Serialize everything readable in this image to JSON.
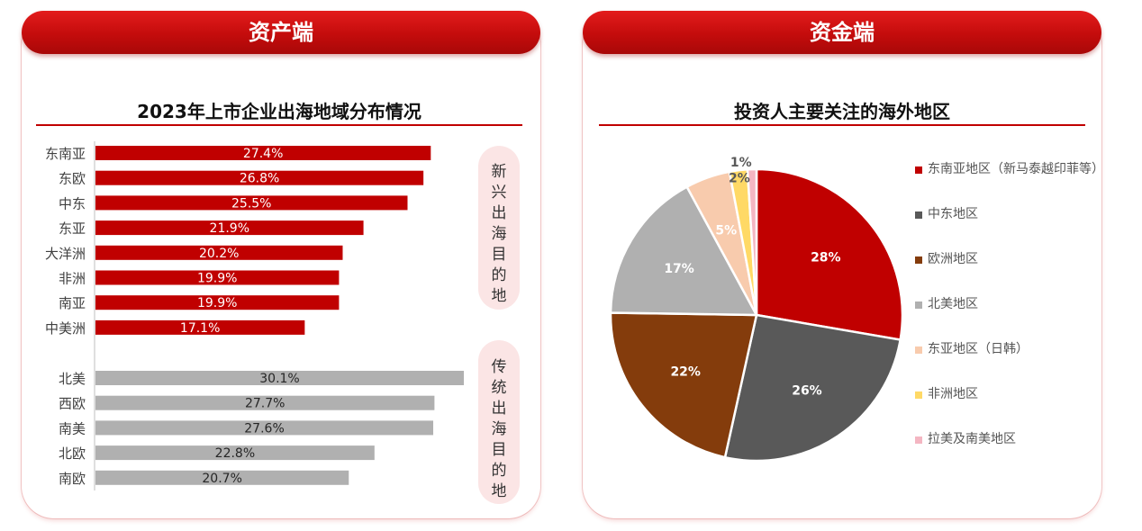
{
  "left_panel": {
    "banner": "资产端",
    "title": "2023年上市企业出海地域分布情况",
    "emerging_label": "新兴出海目的地",
    "traditional_label": "传统出海目的地"
  },
  "right_panel": {
    "banner": "资金端",
    "title": "投资人主要关注的海外地区"
  },
  "colors": {
    "accent_red": "#c00000",
    "bar_emerging": "#c00000",
    "bar_traditional": "#b0b0b0"
  },
  "chart_data": [
    {
      "type": "bar",
      "orientation": "horizontal",
      "title": "2023年上市企业出海地域分布情况",
      "xlim": [
        0,
        32
      ],
      "series": [
        {
          "group": "新兴出海目的地",
          "color": "#c00000",
          "categories": [
            "东南亚",
            "东欧",
            "中东",
            "东亚",
            "大洋洲",
            "非洲",
            "南亚",
            "中美洲"
          ],
          "values": [
            27.4,
            26.8,
            25.5,
            21.9,
            20.2,
            19.9,
            19.9,
            17.1
          ],
          "labels": [
            "27.4%",
            "26.8%",
            "25.5%",
            "21.9%",
            "20.2%",
            "19.9%",
            "19.9%",
            "17.1%"
          ]
        },
        {
          "group": "传统出海目的地",
          "color": "#b0b0b0",
          "categories": [
            "北美",
            "西欧",
            "南美",
            "北欧",
            "南欧"
          ],
          "values": [
            30.1,
            27.7,
            27.6,
            22.8,
            20.7
          ],
          "labels": [
            "30.1%",
            "27.7%",
            "27.6%",
            "22.8%",
            "20.7%"
          ]
        }
      ]
    },
    {
      "type": "pie",
      "title": "投资人主要关注的海外地区",
      "legend_position": "right",
      "slices": [
        {
          "label": "东南亚地区（新马泰越印菲等）",
          "value": 28,
          "text": "28%",
          "color": "#c00000"
        },
        {
          "label": "中东地区",
          "value": 26,
          "text": "26%",
          "color": "#595959"
        },
        {
          "label": "欧洲地区",
          "value": 22,
          "text": "22%",
          "color": "#843c0c"
        },
        {
          "label": "北美地区",
          "value": 17,
          "text": "17%",
          "color": "#b0b0b0"
        },
        {
          "label": "东亚地区（日韩）",
          "value": 5,
          "text": "5%",
          "color": "#f8cbad"
        },
        {
          "label": "非洲地区",
          "value": 2,
          "text": "2%",
          "color": "#ffd966"
        },
        {
          "label": "拉美及南美地区",
          "value": 1,
          "text": "1%",
          "color": "#f4b6c2"
        }
      ]
    }
  ]
}
